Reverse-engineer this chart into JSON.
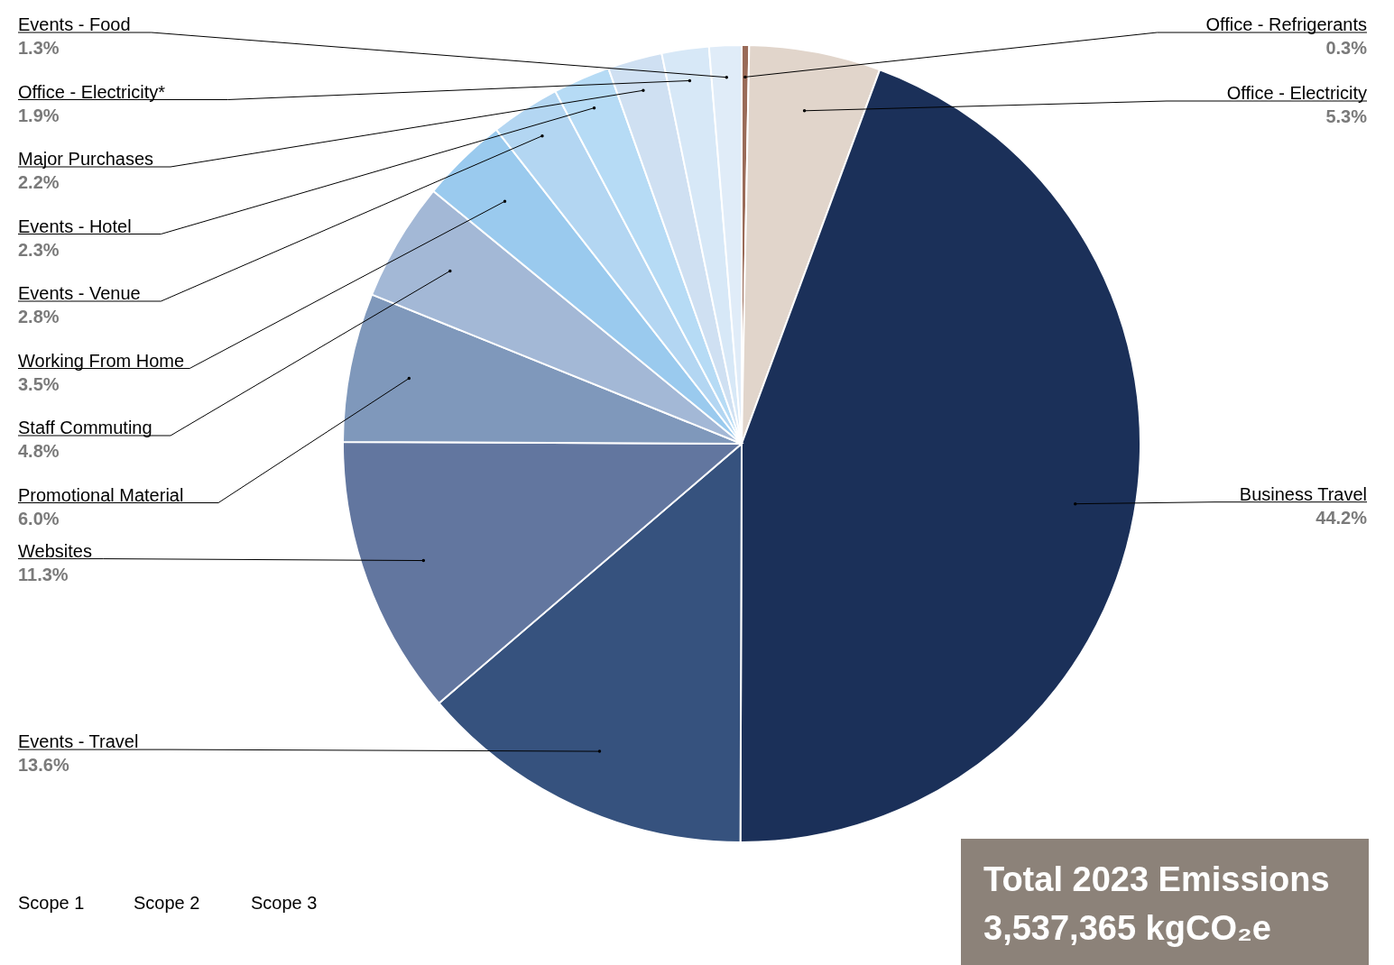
{
  "chart_data": {
    "type": "pie",
    "categories": [
      "Office - Refrigerants",
      "Office - Electricity",
      "Business Travel",
      "Events - Travel",
      "Websites",
      "Promotional Material",
      "Staff Commuting",
      "Working From Home",
      "Events - Venue",
      "Events - Hotel",
      "Major Purchases",
      "Office - Electricity*",
      "Events - Food"
    ],
    "values": [
      0.3,
      5.3,
      44.2,
      13.6,
      11.3,
      6.0,
      4.8,
      3.5,
      2.8,
      2.3,
      2.2,
      1.9,
      1.3
    ],
    "colors": [
      "#9a6b58",
      "#e1d5cb",
      "#1b3059",
      "#36527e",
      "#62769f",
      "#7f98bb",
      "#a3b8d6",
      "#9acaee",
      "#b3d6f2",
      "#b6dbf5",
      "#cfe0f2",
      "#d7e8f7",
      "#e0ecf8"
    ],
    "value_labels": [
      "0.3%",
      "5.3%",
      "44.2%",
      "13.6%",
      "11.3%",
      "6.0%",
      "4.8%",
      "3.5%",
      "2.8%",
      "2.3%",
      "2.2%",
      "1.9%",
      "1.3%"
    ],
    "annotations": [
      "Scope 1",
      "Scope 2",
      "Scope 3",
      "Total 2023 Emissions",
      "3,537,365 kgCO₂e"
    ]
  }
}
